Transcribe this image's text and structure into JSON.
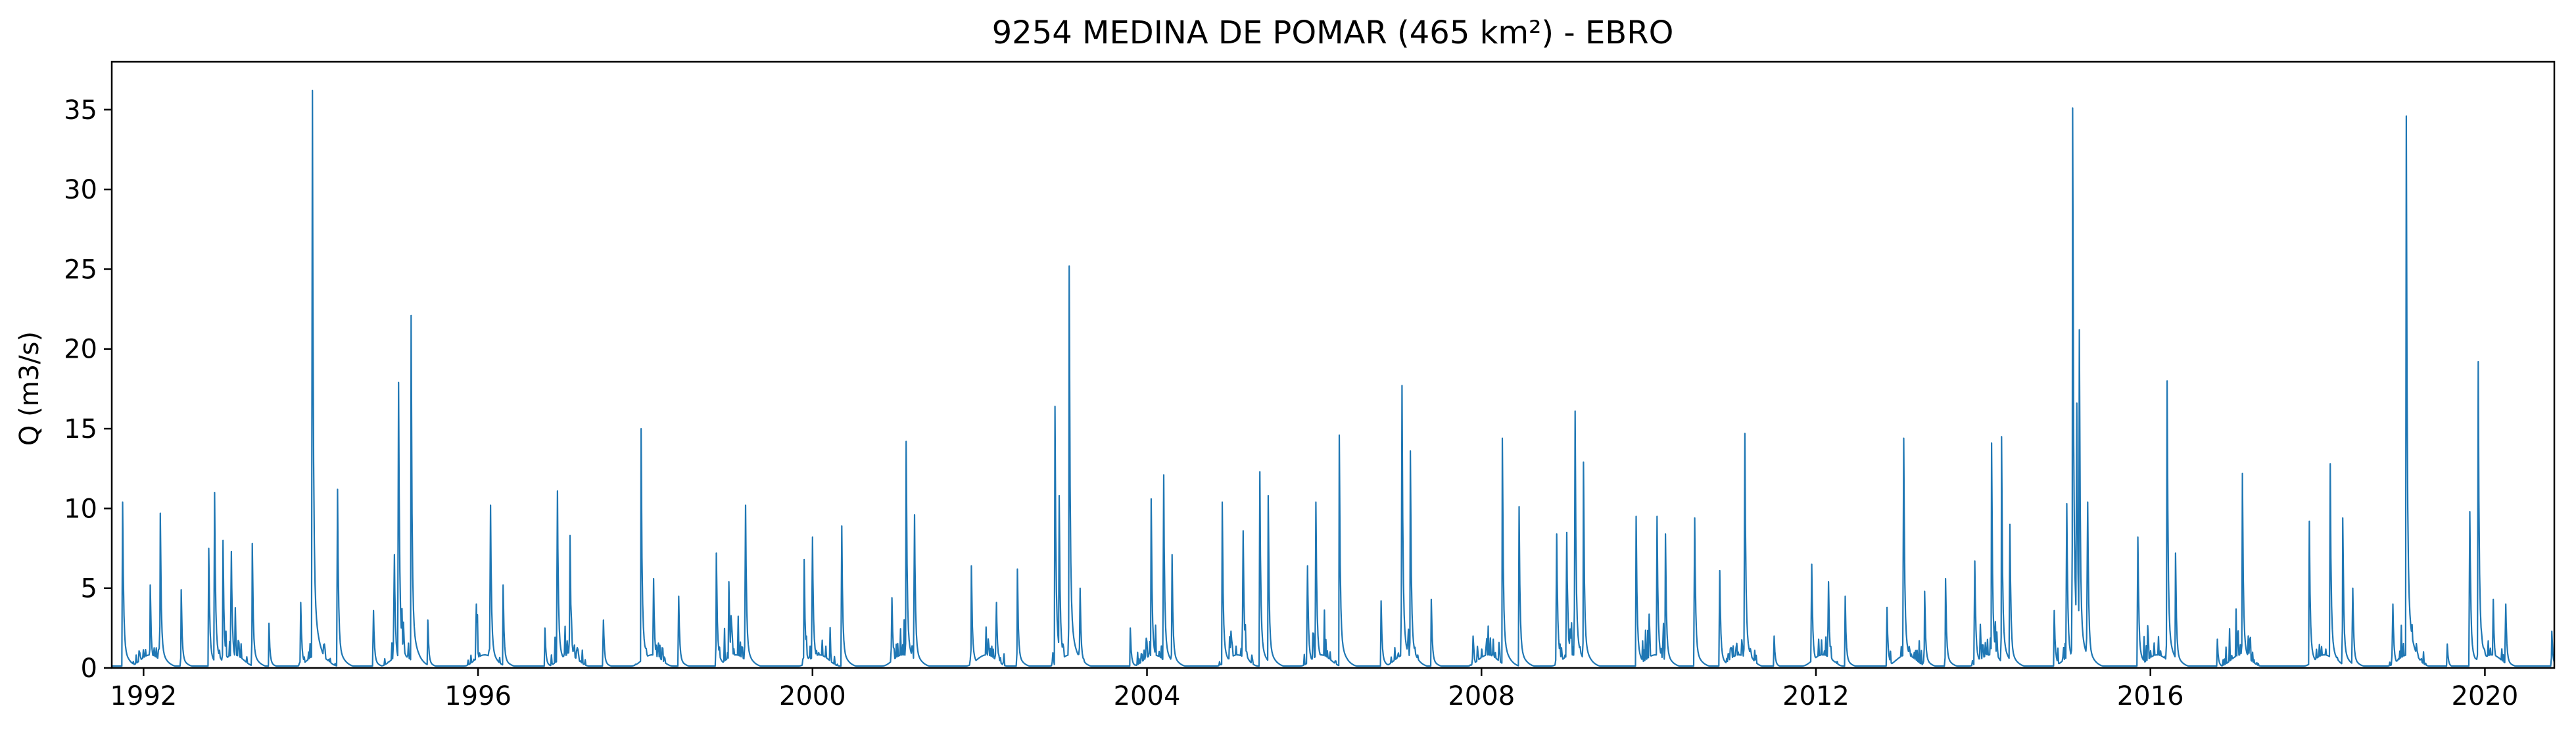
{
  "chart_data": {
    "type": "line",
    "title": "9254 MEDINA DE POMAR (465 km²) - EBRO",
    "xlabel": "",
    "ylabel": "Q (m3/s)",
    "xlim": [
      1991.62,
      2020.83
    ],
    "ylim": [
      0,
      38
    ],
    "xticks": [
      1992,
      1996,
      2000,
      2004,
      2008,
      2012,
      2016,
      2020
    ],
    "xtick_labels": [
      "1992",
      "1996",
      "2000",
      "2004",
      "2008",
      "2012",
      "2016",
      "2020"
    ],
    "yticks": [
      0,
      5,
      10,
      15,
      20,
      25,
      30,
      35
    ],
    "ytick_labels": [
      "0",
      "5",
      "10",
      "15",
      "20",
      "25",
      "30",
      "35"
    ],
    "grid": false,
    "legend": false,
    "series_color": "#1f77b4",
    "series": [
      {
        "name": "",
        "x_unit": "decimal year",
        "y_unit": "m3/s",
        "peaks": [
          [
            1991.75,
            10.4
          ],
          [
            1992.08,
            5.2
          ],
          [
            1992.2,
            9.7
          ],
          [
            1992.45,
            4.9
          ],
          [
            1992.78,
            7.5
          ],
          [
            1992.85,
            11.0
          ],
          [
            1992.95,
            8.0
          ],
          [
            1993.05,
            7.3
          ],
          [
            1993.3,
            7.8
          ],
          [
            1993.5,
            2.8
          ],
          [
            1993.88,
            4.1
          ],
          [
            1994.02,
            36.2
          ],
          [
            1994.32,
            11.2
          ],
          [
            1994.75,
            3.6
          ],
          [
            1995.0,
            7.1
          ],
          [
            1995.05,
            17.9
          ],
          [
            1995.2,
            22.1
          ],
          [
            1995.4,
            3.0
          ],
          [
            1995.98,
            4.0
          ],
          [
            1996.15,
            10.2
          ],
          [
            1996.3,
            5.2
          ],
          [
            1996.8,
            2.5
          ],
          [
            1996.95,
            11.1
          ],
          [
            1997.1,
            8.3
          ],
          [
            1997.5,
            3.0
          ],
          [
            1997.95,
            15.0
          ],
          [
            1998.1,
            5.6
          ],
          [
            1998.4,
            4.5
          ],
          [
            1998.85,
            7.2
          ],
          [
            1999.0,
            5.4
          ],
          [
            1999.2,
            10.2
          ],
          [
            1999.9,
            6.8
          ],
          [
            2000.0,
            8.2
          ],
          [
            2000.35,
            8.9
          ],
          [
            2000.95,
            4.4
          ],
          [
            2001.12,
            14.2
          ],
          [
            2001.22,
            9.6
          ],
          [
            2001.9,
            6.4
          ],
          [
            2002.2,
            4.1
          ],
          [
            2002.45,
            6.2
          ],
          [
            2002.9,
            16.4
          ],
          [
            2002.95,
            10.8
          ],
          [
            2003.07,
            25.2
          ],
          [
            2003.2,
            5.0
          ],
          [
            2003.8,
            2.5
          ],
          [
            2004.05,
            10.6
          ],
          [
            2004.2,
            12.1
          ],
          [
            2004.3,
            7.1
          ],
          [
            2004.9,
            10.4
          ],
          [
            2005.15,
            8.6
          ],
          [
            2005.35,
            12.3
          ],
          [
            2005.45,
            10.8
          ],
          [
            2005.92,
            6.4
          ],
          [
            2006.02,
            10.4
          ],
          [
            2006.3,
            14.6
          ],
          [
            2006.8,
            4.2
          ],
          [
            2007.05,
            17.7
          ],
          [
            2007.15,
            13.6
          ],
          [
            2007.4,
            4.3
          ],
          [
            2007.9,
            2.0
          ],
          [
            2008.25,
            14.4
          ],
          [
            2008.45,
            10.1
          ],
          [
            2008.9,
            8.4
          ],
          [
            2009.02,
            8.5
          ],
          [
            2009.12,
            16.1
          ],
          [
            2009.22,
            12.9
          ],
          [
            2009.85,
            9.5
          ],
          [
            2010.1,
            9.5
          ],
          [
            2010.2,
            8.4
          ],
          [
            2010.55,
            9.4
          ],
          [
            2010.85,
            6.1
          ],
          [
            2011.15,
            14.7
          ],
          [
            2011.5,
            2.0
          ],
          [
            2011.95,
            6.5
          ],
          [
            2012.15,
            5.4
          ],
          [
            2012.35,
            4.5
          ],
          [
            2012.85,
            3.8
          ],
          [
            2013.05,
            14.4
          ],
          [
            2013.3,
            4.8
          ],
          [
            2013.55,
            5.6
          ],
          [
            2013.9,
            6.7
          ],
          [
            2014.1,
            14.1
          ],
          [
            2014.22,
            14.5
          ],
          [
            2014.32,
            9.0
          ],
          [
            2014.85,
            3.6
          ],
          [
            2015.0,
            10.3
          ],
          [
            2015.07,
            35.1
          ],
          [
            2015.12,
            16.6
          ],
          [
            2015.15,
            21.2
          ],
          [
            2015.25,
            10.4
          ],
          [
            2015.85,
            8.2
          ],
          [
            2016.2,
            18.0
          ],
          [
            2016.3,
            7.2
          ],
          [
            2016.8,
            1.8
          ],
          [
            2017.1,
            12.2
          ],
          [
            2017.9,
            9.2
          ],
          [
            2018.15,
            12.8
          ],
          [
            2018.3,
            9.4
          ],
          [
            2018.42,
            5.0
          ],
          [
            2018.9,
            4.0
          ],
          [
            2019.06,
            34.6
          ],
          [
            2019.55,
            1.5
          ],
          [
            2019.82,
            9.8
          ],
          [
            2019.92,
            19.2
          ],
          [
            2020.1,
            4.3
          ],
          [
            2020.25,
            4.0
          ],
          [
            2020.8,
            2.3
          ]
        ]
      }
    ]
  }
}
